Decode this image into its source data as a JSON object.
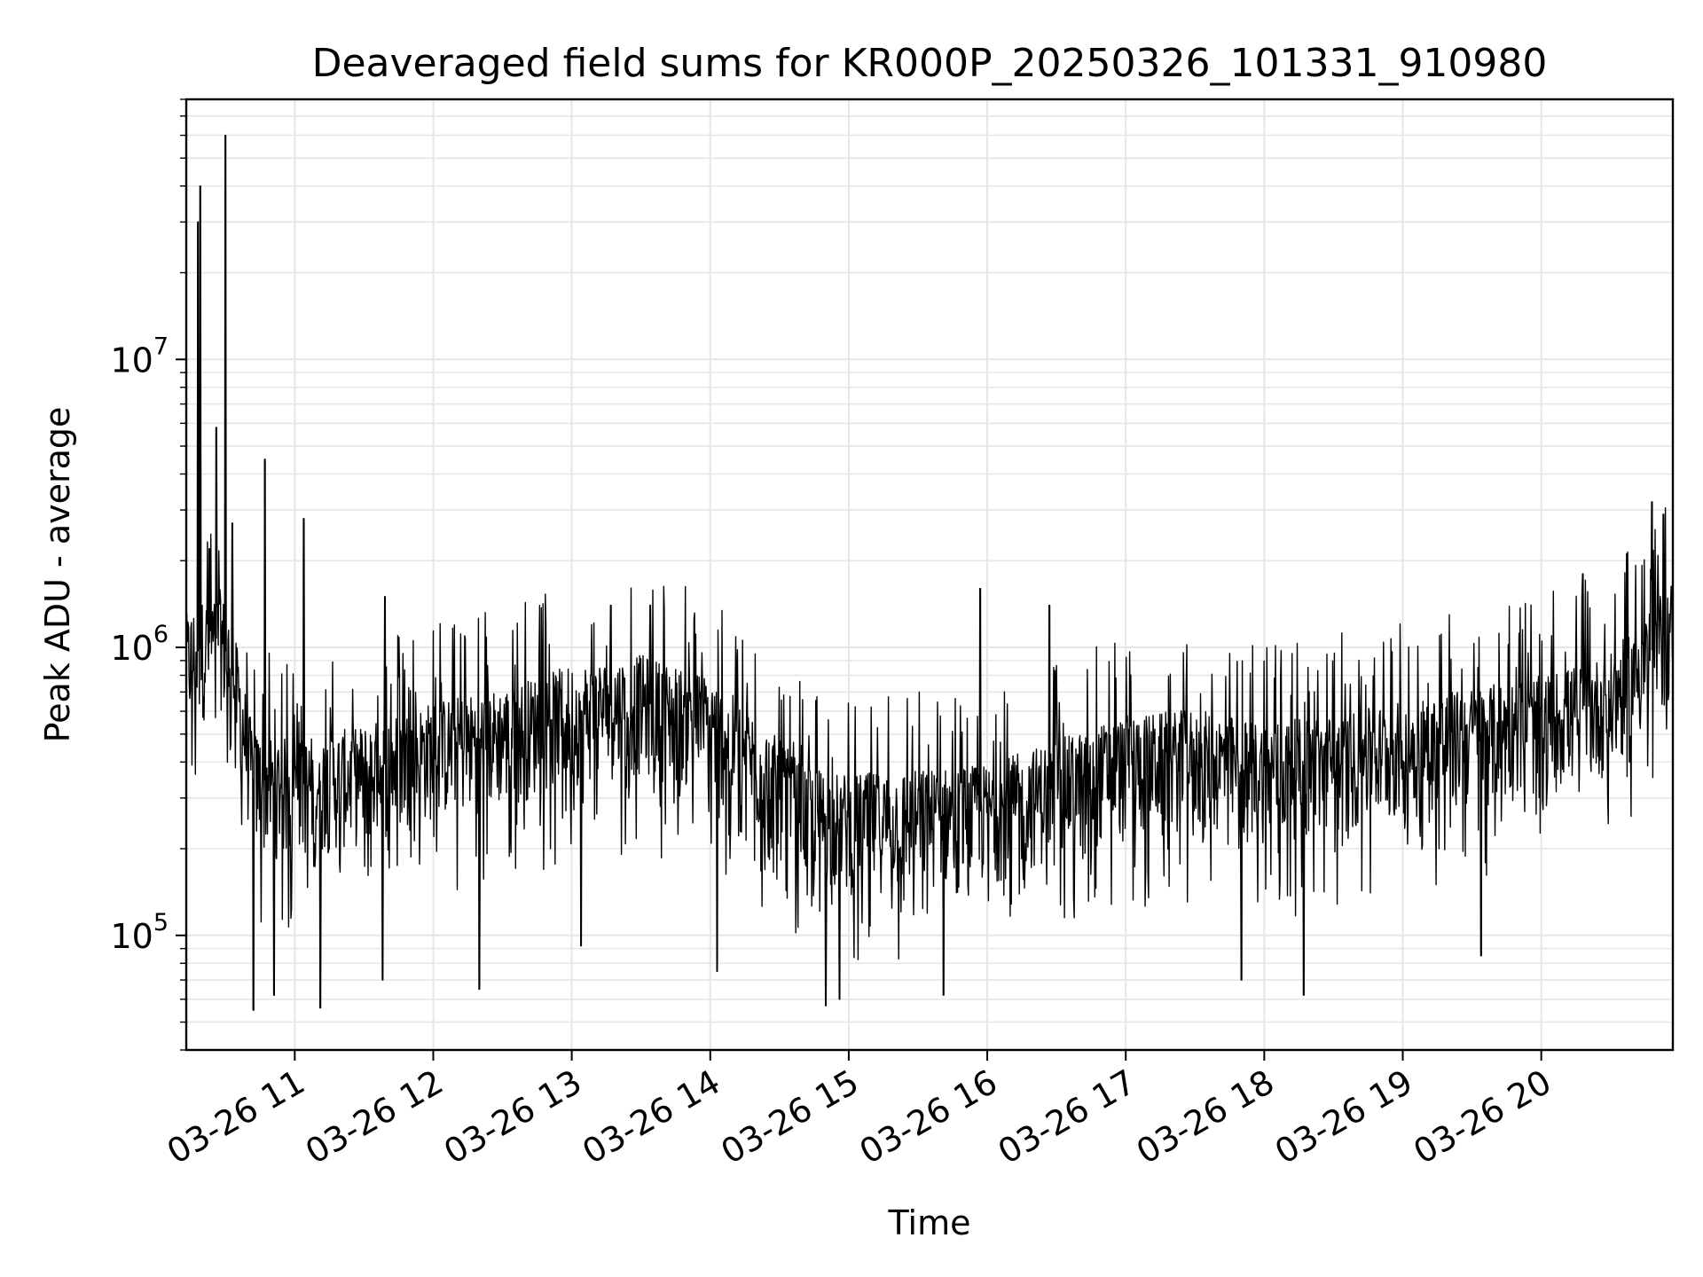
{
  "chart_data": {
    "type": "line",
    "title": "Deaveraged field sums for KR000P_20250326_101331_910980",
    "xlabel": "Time",
    "ylabel": "Peak ADU - average",
    "yscale": "log",
    "ylim": [
      40000,
      80000000
    ],
    "xlim": [
      "2025-03-26 10:13",
      "2025-03-26 20:57"
    ],
    "grid": true,
    "line_color": "#000000",
    "grid_color": "#e6e6e6",
    "x_ticks": [
      {
        "value": "2025-03-26 11:00",
        "label": "03-26 11"
      },
      {
        "value": "2025-03-26 12:00",
        "label": "03-26 12"
      },
      {
        "value": "2025-03-26 13:00",
        "label": "03-26 13"
      },
      {
        "value": "2025-03-26 14:00",
        "label": "03-26 14"
      },
      {
        "value": "2025-03-26 15:00",
        "label": "03-26 15"
      },
      {
        "value": "2025-03-26 16:00",
        "label": "03-26 16"
      },
      {
        "value": "2025-03-26 17:00",
        "label": "03-26 17"
      },
      {
        "value": "2025-03-26 18:00",
        "label": "03-26 18"
      },
      {
        "value": "2025-03-26 19:00",
        "label": "03-26 19"
      },
      {
        "value": "2025-03-26 20:00",
        "label": "03-26 20"
      }
    ],
    "y_ticks": [
      {
        "value": 100000,
        "base": "10",
        "exp": "5"
      },
      {
        "value": 1000000,
        "base": "10",
        "exp": "6"
      },
      {
        "value": 10000000,
        "base": "10",
        "exp": "7"
      }
    ],
    "series": [
      {
        "envelope": [
          {
            "x": "2025-03-26 10:13",
            "y": 900000
          },
          {
            "x": "2025-03-26 10:20",
            "y": 1000000
          },
          {
            "x": "2025-03-26 10:28",
            "y": 1100000
          },
          {
            "x": "2025-03-26 10:35",
            "y": 700000
          },
          {
            "x": "2025-03-26 10:42",
            "y": 350000
          },
          {
            "x": "2025-03-26 11:00",
            "y": 330000
          },
          {
            "x": "2025-03-26 11:30",
            "y": 370000
          },
          {
            "x": "2025-03-26 12:00",
            "y": 450000
          },
          {
            "x": "2025-03-26 12:30",
            "y": 500000
          },
          {
            "x": "2025-03-26 13:00",
            "y": 600000
          },
          {
            "x": "2025-03-26 13:30",
            "y": 650000
          },
          {
            "x": "2025-03-26 14:00",
            "y": 550000
          },
          {
            "x": "2025-03-26 14:20",
            "y": 400000
          },
          {
            "x": "2025-03-26 14:40",
            "y": 270000
          },
          {
            "x": "2025-03-26 15:00",
            "y": 250000
          },
          {
            "x": "2025-03-26 15:30",
            "y": 260000
          },
          {
            "x": "2025-03-26 16:00",
            "y": 270000
          },
          {
            "x": "2025-03-26 16:30",
            "y": 330000
          },
          {
            "x": "2025-03-26 17:00",
            "y": 400000
          },
          {
            "x": "2025-03-26 17:30",
            "y": 420000
          },
          {
            "x": "2025-03-26 18:00",
            "y": 380000
          },
          {
            "x": "2025-03-26 18:30",
            "y": 400000
          },
          {
            "x": "2025-03-26 19:00",
            "y": 450000
          },
          {
            "x": "2025-03-26 19:30",
            "y": 500000
          },
          {
            "x": "2025-03-26 20:00",
            "y": 550000
          },
          {
            "x": "2025-03-26 20:30",
            "y": 650000
          },
          {
            "x": "2025-03-26 20:57",
            "y": 1200000
          }
        ],
        "spikes": [
          {
            "x": "2025-03-26 10:18",
            "y": 30000000
          },
          {
            "x": "2025-03-26 10:19",
            "y": 40000000
          },
          {
            "x": "2025-03-26 10:23",
            "y": 2200000
          },
          {
            "x": "2025-03-26 10:26",
            "y": 5800000
          },
          {
            "x": "2025-03-26 10:30",
            "y": 60000000
          },
          {
            "x": "2025-03-26 10:33",
            "y": 2700000
          },
          {
            "x": "2025-03-26 10:47",
            "y": 4500000
          },
          {
            "x": "2025-03-26 11:04",
            "y": 2800000
          },
          {
            "x": "2025-03-26 11:39",
            "y": 1500000
          },
          {
            "x": "2025-03-26 13:17",
            "y": 1400000
          },
          {
            "x": "2025-03-26 13:34",
            "y": 1400000
          },
          {
            "x": "2025-03-26 15:57",
            "y": 1600000
          },
          {
            "x": "2025-03-26 16:27",
            "y": 1400000
          },
          {
            "x": "2025-03-26 20:18",
            "y": 1800000
          },
          {
            "x": "2025-03-26 20:48",
            "y": 3200000
          },
          {
            "x": "2025-03-26 20:53",
            "y": 2900000
          }
        ],
        "dips": [
          {
            "x": "2025-03-26 10:42",
            "y": 55000
          },
          {
            "x": "2025-03-26 10:51",
            "y": 62000
          },
          {
            "x": "2025-03-26 11:11",
            "y": 56000
          },
          {
            "x": "2025-03-26 11:38",
            "y": 70000
          },
          {
            "x": "2025-03-26 12:20",
            "y": 65000
          },
          {
            "x": "2025-03-26 13:04",
            "y": 92000
          },
          {
            "x": "2025-03-26 14:03",
            "y": 75000
          },
          {
            "x": "2025-03-26 14:50",
            "y": 57000
          },
          {
            "x": "2025-03-26 14:56",
            "y": 60000
          },
          {
            "x": "2025-03-26 15:41",
            "y": 62000
          },
          {
            "x": "2025-03-26 17:50",
            "y": 70000
          },
          {
            "x": "2025-03-26 18:17",
            "y": 62000
          },
          {
            "x": "2025-03-26 19:34",
            "y": 85000
          }
        ]
      }
    ]
  }
}
